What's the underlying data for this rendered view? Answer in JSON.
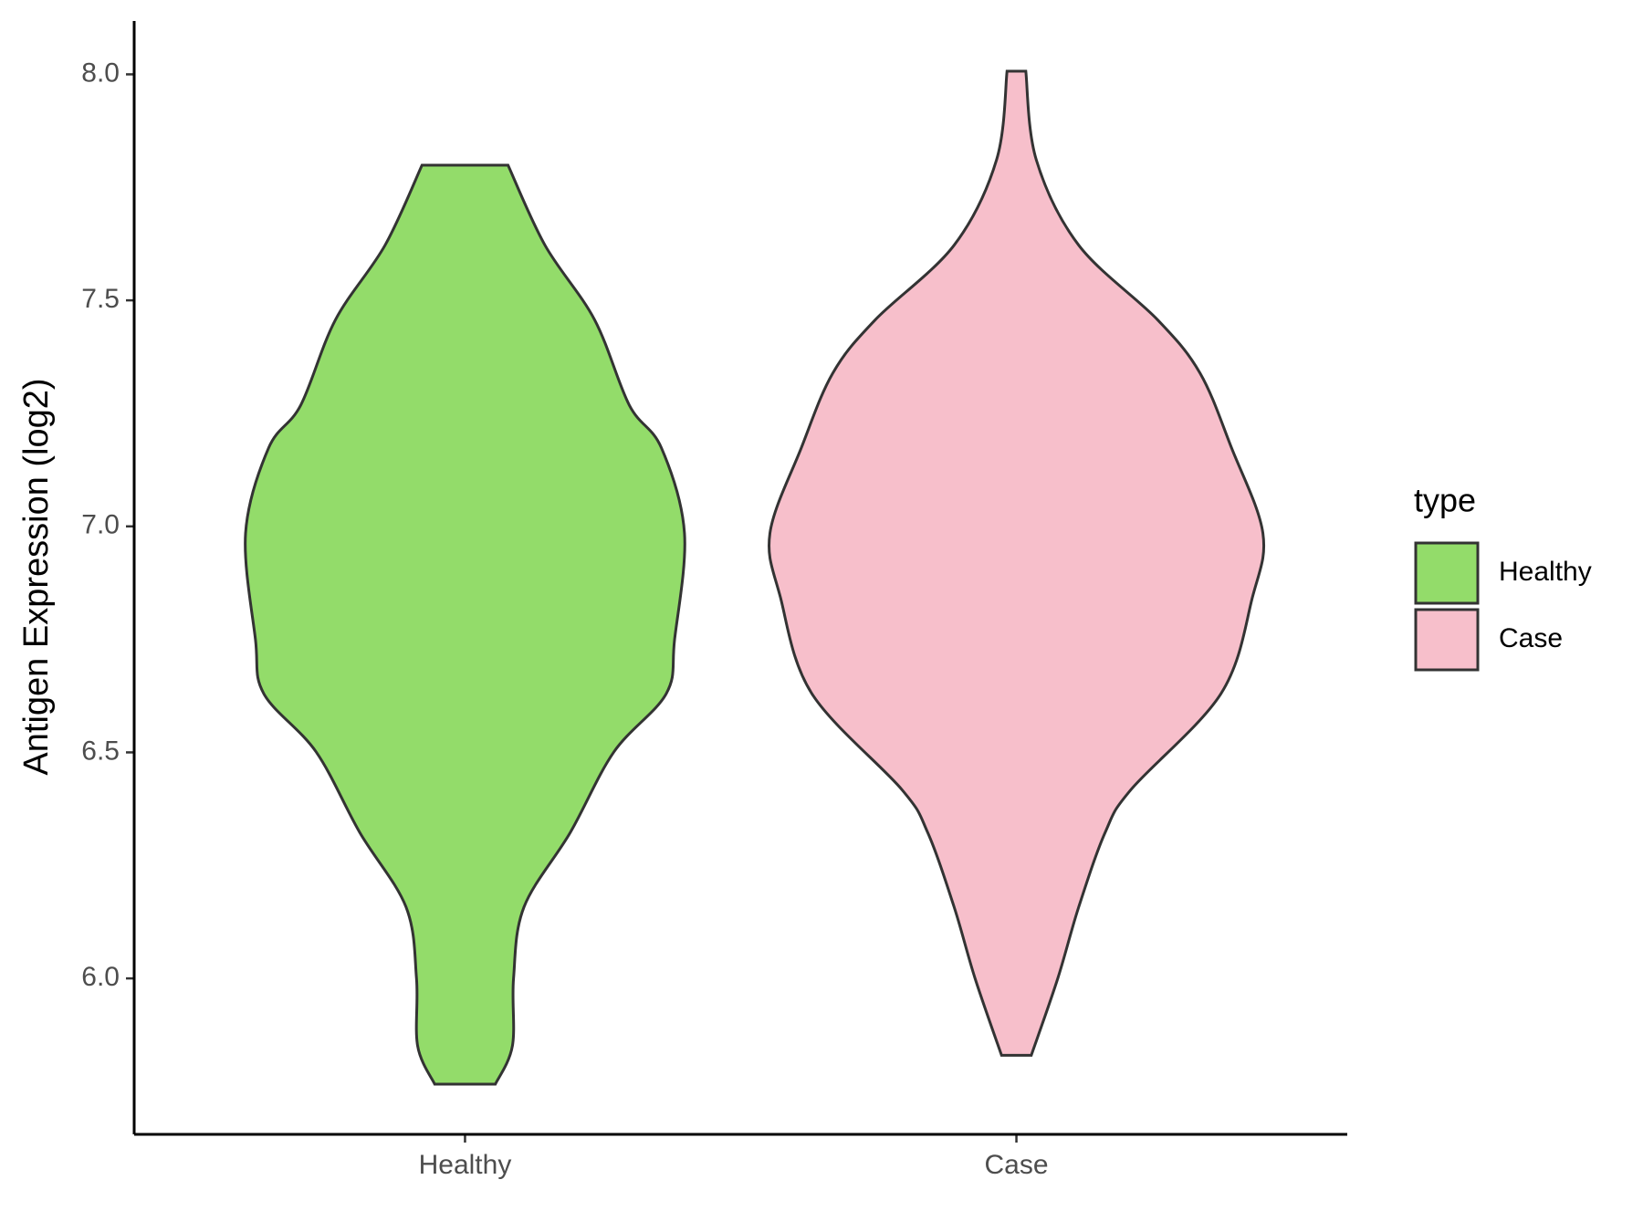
{
  "chart_data": {
    "type": "violin",
    "y_label": "Antigen Expression (log2)",
    "categories": [
      "Healthy",
      "Case"
    ],
    "legend_title": "type",
    "series": [
      {
        "name": "Healthy",
        "color": "#93dc6a",
        "y": [
          5.766,
          5.851,
          6.0,
          6.158,
          6.323,
          6.501,
          6.63,
          6.749,
          6.985,
          7.174,
          7.268,
          7.457,
          7.622,
          7.799
        ],
        "half_width": [
          0.055,
          0.086,
          0.088,
          0.107,
          0.191,
          0.27,
          0.365,
          0.38,
          0.398,
          0.356,
          0.298,
          0.235,
          0.145,
          0.078
        ]
      },
      {
        "name": "Case",
        "color": "#f7bfcb",
        "y": [
          5.83,
          6.0,
          6.158,
          6.323,
          6.418,
          6.63,
          6.843,
          6.985,
          7.174,
          7.339,
          7.457,
          7.622,
          7.811,
          8.007
        ],
        "half_width": [
          0.027,
          0.075,
          0.113,
          0.161,
          0.208,
          0.371,
          0.428,
          0.447,
          0.39,
          0.333,
          0.256,
          0.113,
          0.036,
          0.017
        ]
      }
    ],
    "ylim": [
      5.655,
      8.118
    ],
    "yticks": [
      {
        "value": 6.0,
        "label": "6.0"
      },
      {
        "value": 6.5,
        "label": "6.5"
      },
      {
        "value": 7.0,
        "label": "7.0"
      },
      {
        "value": 7.5,
        "label": "7.5"
      },
      {
        "value": 8.0,
        "label": "8.0"
      }
    ],
    "legend": "right"
  }
}
